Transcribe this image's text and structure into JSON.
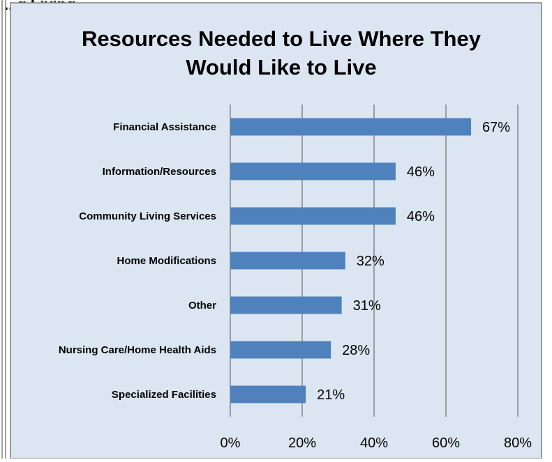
{
  "page": {
    "top_caption": "...g   Living"
  },
  "chart_data": {
    "type": "bar",
    "orientation": "horizontal",
    "title": "Resources Needed to Live Where They Would Like to Live",
    "title_lines": [
      "Resources Needed to Live Where They",
      "Would Like to Live"
    ],
    "categories": [
      "Financial Assistance",
      "Information/Resources",
      "Community Living Services",
      "Home Modifications",
      "Other",
      "Nursing Care/Home Health Aids",
      "Specialized Facilities"
    ],
    "values": [
      67,
      46,
      46,
      32,
      31,
      28,
      21
    ],
    "data_labels": [
      "67%",
      "46%",
      "46%",
      "32%",
      "31%",
      "28%",
      "21%"
    ],
    "xlim": [
      0,
      80
    ],
    "x_ticks": [
      0,
      20,
      40,
      60,
      80
    ],
    "x_tick_labels": [
      "0%",
      "20%",
      "40%",
      "60%",
      "80%"
    ],
    "xlabel": "",
    "ylabel": "",
    "grid": "vertical",
    "legend": "none",
    "colors": {
      "bar": "#4f81bd",
      "chart_background": "#dce6f2",
      "gridline": "#555555",
      "frame": "#7f7f7f"
    }
  }
}
